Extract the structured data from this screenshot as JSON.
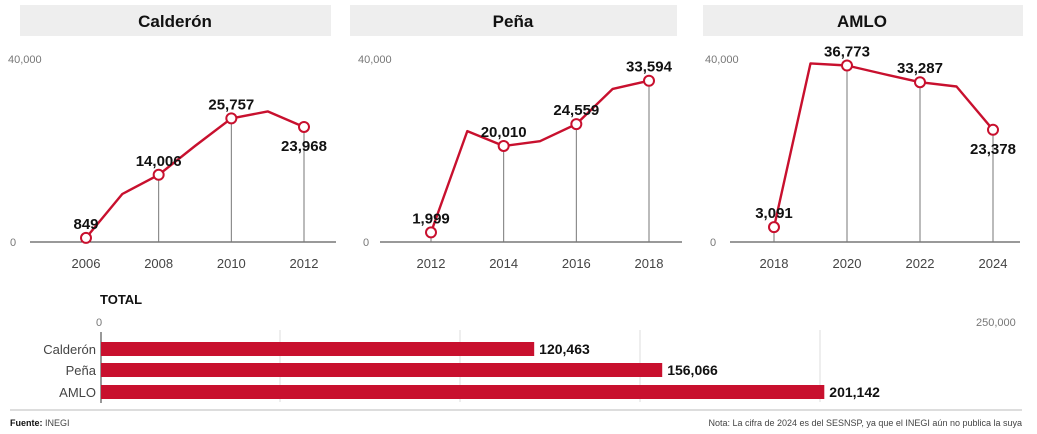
{
  "colors": {
    "series": "#c8102e",
    "title_band": "#eeeeee",
    "text": "#111111"
  },
  "chart_data": [
    {
      "type": "line",
      "title": "Calderón",
      "ylim": [
        0,
        40000
      ],
      "ytick_labels": [
        "0",
        "40,000"
      ],
      "xticks": [
        2006,
        2008,
        2010,
        2012
      ],
      "x": [
        2006,
        2007,
        2008,
        2009,
        2010,
        2011,
        2012
      ],
      "values": [
        849,
        10000,
        14006,
        20000,
        25757,
        27200,
        23968
      ],
      "labeled_points": [
        {
          "x": 2006,
          "value": 849,
          "label": "849"
        },
        {
          "x": 2008,
          "value": 14006,
          "label": "14,006"
        },
        {
          "x": 2010,
          "value": 25757,
          "label": "25,757"
        },
        {
          "x": 2012,
          "value": 23968,
          "label": "23,968"
        }
      ]
    },
    {
      "type": "line",
      "title": "Peña",
      "ylim": [
        0,
        40000
      ],
      "ytick_labels": [
        "0",
        "40,000"
      ],
      "xticks": [
        2012,
        2014,
        2016,
        2018
      ],
      "x": [
        2012,
        2013,
        2014,
        2015,
        2016,
        2017,
        2018
      ],
      "values": [
        1999,
        23100,
        20010,
        21000,
        24559,
        31900,
        33594
      ],
      "labeled_points": [
        {
          "x": 2012,
          "value": 1999,
          "label": "1,999"
        },
        {
          "x": 2014,
          "value": 20010,
          "label": "20,010"
        },
        {
          "x": 2016,
          "value": 24559,
          "label": "24,559"
        },
        {
          "x": 2018,
          "value": 33594,
          "label": "33,594"
        }
      ]
    },
    {
      "type": "line",
      "title": "AMLO",
      "ylim": [
        0,
        40000
      ],
      "ytick_labels": [
        "0",
        "40,000"
      ],
      "xticks": [
        2018,
        2020,
        2022,
        2024
      ],
      "x": [
        2018,
        2019,
        2020,
        2021,
        2022,
        2023,
        2024
      ],
      "values": [
        3091,
        37200,
        36773,
        35000,
        33287,
        32400,
        23378
      ],
      "labeled_points": [
        {
          "x": 2018,
          "value": 3091,
          "label": "3,091"
        },
        {
          "x": 2020,
          "value": 36773,
          "label": "36,773"
        },
        {
          "x": 2022,
          "value": 33287,
          "label": "33,287"
        },
        {
          "x": 2024,
          "value": 23378,
          "label": "23,378"
        }
      ]
    },
    {
      "type": "bar",
      "orientation": "horizontal",
      "title": "TOTAL",
      "xlim": [
        0,
        250000
      ],
      "xtick_labels": [
        "0",
        "250,000"
      ],
      "categories": [
        "Calderón",
        "Peña",
        "AMLO"
      ],
      "values": [
        120463,
        156066,
        201142
      ],
      "labels": [
        "120,463",
        "156,066",
        "201,142"
      ]
    }
  ],
  "footer": {
    "source_label": "Fuente:",
    "source_value": " INEGI",
    "note": "Nota: La cifra de 2024 es del SESNSP, ya que el INEGI aún no publica la suya"
  }
}
